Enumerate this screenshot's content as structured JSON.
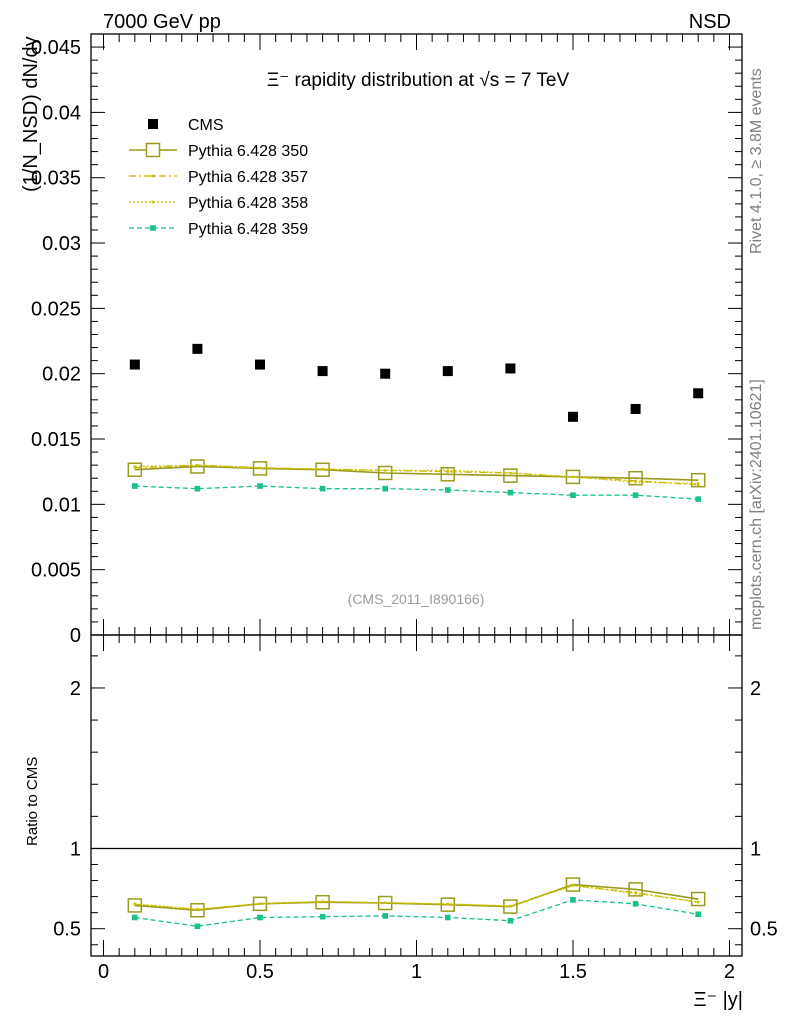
{
  "header": {
    "left": "7000 GeV pp",
    "right": "NSD"
  },
  "side_labels": {
    "rivet": "Rivet 4.1.0, ≥ 3.8M events",
    "mcplots": "mcplots.cern.ch [arXiv:2401.10621]"
  },
  "colors": {
    "cms": "#000000",
    "p350": "#9a9a1c",
    "p357": "#d4b000",
    "p358": "#c8c800",
    "p359": "#19c08a"
  },
  "chart_data": [
    {
      "type": "scatter",
      "panel": "main",
      "title": "Ξ⁻ rapidity distribution at √s = 7 TeV",
      "ylabel": "(1/N_NSD) dN/dy",
      "xlim": [
        -0.04,
        2.04
      ],
      "ylim": [
        0,
        0.046
      ],
      "yticks": [
        0,
        0.005,
        0.01,
        0.015,
        0.02,
        0.025,
        0.03,
        0.035,
        0.04,
        0.045
      ],
      "ytick_labels": [
        "0",
        "0.005",
        "0.01",
        "0.015",
        "0.02",
        "0.025",
        "0.03",
        "0.035",
        "0.04",
        "0.045"
      ],
      "watermark": "(CMS_2011_I890166)",
      "x": [
        0.1,
        0.3,
        0.5,
        0.7,
        0.9,
        1.1,
        1.3,
        1.5,
        1.7,
        1.9
      ],
      "series": [
        {
          "name": "CMS",
          "style": "data",
          "values": [
            0.0207,
            0.0219,
            0.0207,
            0.0202,
            0.02,
            0.0202,
            0.0204,
            0.0167,
            0.0173,
            0.0185
          ]
        },
        {
          "name": "Pythia 6.428 350",
          "style": "solid",
          "values": [
            0.01265,
            0.0129,
            0.01275,
            0.01265,
            0.0124,
            0.0123,
            0.0122,
            0.0121,
            0.012,
            0.01185
          ]
        },
        {
          "name": "Pythia 6.428 357",
          "style": "dashdot",
          "values": [
            0.0128,
            0.013,
            0.0128,
            0.0127,
            0.0126,
            0.0125,
            0.0124,
            0.0121,
            0.0118,
            0.0115
          ]
        },
        {
          "name": "Pythia 6.428 358",
          "style": "dotted",
          "values": [
            0.0129,
            0.013,
            0.0128,
            0.0127,
            0.0126,
            0.0126,
            0.0124,
            0.0121,
            0.0117,
            0.0116
          ]
        },
        {
          "name": "Pythia 6.428 359",
          "style": "dashed",
          "values": [
            0.0114,
            0.0112,
            0.0114,
            0.0112,
            0.0112,
            0.0111,
            0.0109,
            0.0107,
            0.0107,
            0.0104
          ]
        }
      ]
    },
    {
      "type": "line",
      "panel": "ratio",
      "ylabel": "Ratio to CMS",
      "xlabel": "Ξ⁻ |y|",
      "xlim": [
        -0.04,
        2.04
      ],
      "ylim": [
        0.33,
        2.33
      ],
      "yticks": [
        0.5,
        1,
        2
      ],
      "ytick_labels": [
        "0.5",
        "1",
        "2"
      ],
      "xticks": [
        0,
        0.5,
        1,
        1.5,
        2
      ],
      "xtick_labels": [
        "0",
        "0.5",
        "1",
        "1.5",
        "2"
      ],
      "reference": 1,
      "x": [
        0.1,
        0.3,
        0.5,
        0.7,
        0.9,
        1.1,
        1.3,
        1.5,
        1.7,
        1.9
      ],
      "series": [
        {
          "name": "Pythia 6.428 350",
          "style": "solid",
          "values": [
            0.645,
            0.615,
            0.655,
            0.665,
            0.66,
            0.65,
            0.638,
            0.775,
            0.745,
            0.685
          ]
        },
        {
          "name": "Pythia 6.428 357",
          "style": "dashdot",
          "values": [
            0.652,
            0.62,
            0.655,
            0.668,
            0.662,
            0.652,
            0.64,
            0.77,
            0.725,
            0.665
          ]
        },
        {
          "name": "Pythia 6.428 358",
          "style": "dotted",
          "values": [
            0.655,
            0.622,
            0.657,
            0.67,
            0.662,
            0.655,
            0.642,
            0.768,
            0.72,
            0.668
          ]
        },
        {
          "name": "Pythia 6.428 359",
          "style": "dashed",
          "values": [
            0.57,
            0.515,
            0.57,
            0.575,
            0.58,
            0.57,
            0.55,
            0.68,
            0.655,
            0.59
          ]
        }
      ]
    }
  ]
}
